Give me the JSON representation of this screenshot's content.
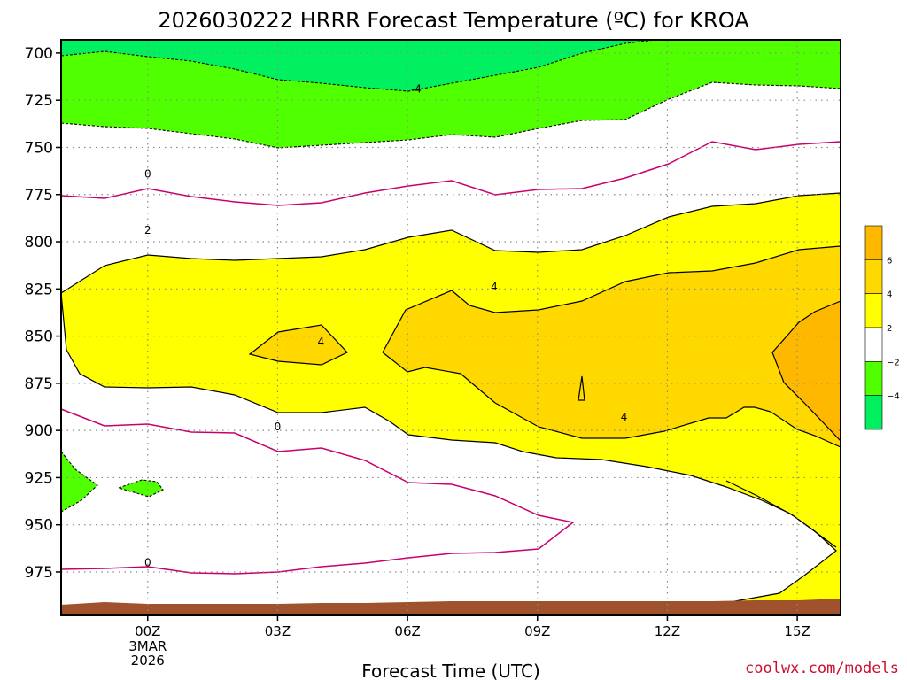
{
  "chart_data": {
    "type": "contour",
    "title": "2026030222 HRRR Forecast Temperature (ºC) for KROA",
    "xlabel": "Forecast Time (UTC)",
    "credit": "coolwx.com/models",
    "x_ticks": [
      "00Z",
      "03Z",
      "06Z",
      "09Z",
      "12Z",
      "15Z"
    ],
    "x_tick_hours": [
      0,
      3,
      6,
      9,
      12,
      15
    ],
    "x_date_lines": [
      "3MAR",
      "2026"
    ],
    "xlim_hours": [
      -2,
      16
    ],
    "y_ticks": [
      "700",
      "725",
      "750",
      "775",
      "800",
      "825",
      "850",
      "875",
      "900",
      "925",
      "950",
      "975"
    ],
    "y_tick_values": [
      700,
      725,
      750,
      775,
      800,
      825,
      850,
      875,
      900,
      925,
      950,
      975
    ],
    "ylim_hpa": [
      693,
      998
    ],
    "y_inverted": true,
    "grid": true,
    "legend_position": "right",
    "colorbar_ticks": [
      "6",
      "4",
      "2",
      "−2",
      "−4"
    ],
    "colorbar_colors": [
      "#00f060",
      "#50ff00",
      "#ffffff",
      "#ffff00",
      "#ffd800",
      "#ffb800"
    ],
    "contour_levels": [
      -4,
      -2,
      0,
      2,
      4
    ],
    "contour_labels": [
      {
        "text": "-4",
        "hour": 6.2,
        "hpa": 719
      },
      {
        "text": "0",
        "hour": 0.0,
        "hpa": 764
      },
      {
        "text": "2",
        "hour": 0.0,
        "hpa": 794
      },
      {
        "text": "4",
        "hour": 8.0,
        "hpa": 824
      },
      {
        "text": "4",
        "hour": 4.0,
        "hpa": 853
      },
      {
        "text": "0",
        "hour": 3.0,
        "hpa": 898
      },
      {
        "text": "4",
        "hour": 11.0,
        "hpa": 893
      },
      {
        "text": "0",
        "hour": 0.0,
        "hpa": 970
      }
    ],
    "colors": {
      "lt_minus4": "#00f060",
      "minus4_to_minus2": "#50ff00",
      "minus2_to_2": "#ffffff",
      "two_to_4": "#ffff00",
      "four_to_6": "#ffd800",
      "gt_6": "#ffb800",
      "zero_line": "#c8006e",
      "terrain": "#a0522d"
    }
  }
}
